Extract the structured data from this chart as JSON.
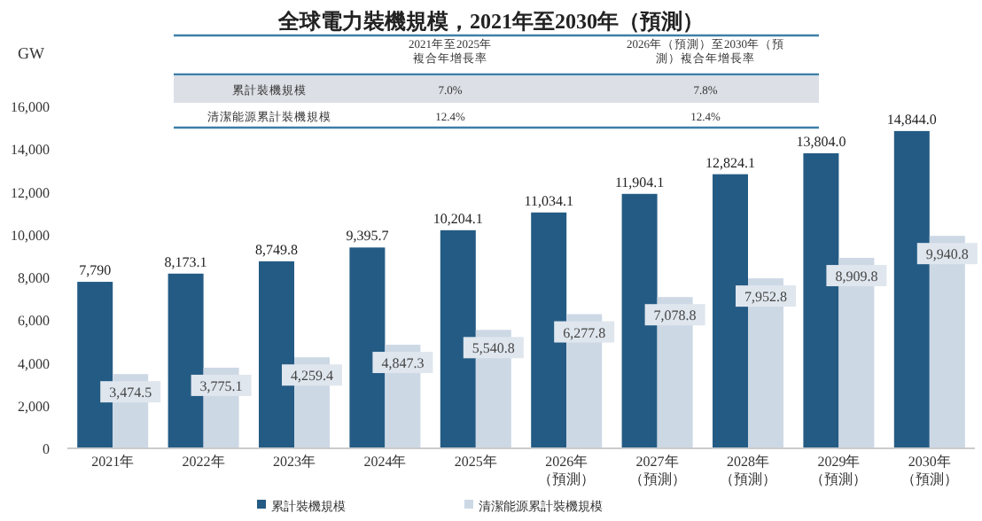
{
  "chart_data": {
    "type": "bar",
    "title": "全球電力裝機規模，2021年至2030年（預測）",
    "ylabel": "GW",
    "categories": [
      "2021年",
      "2022年",
      "2023年",
      "2024年",
      "2025年",
      "2026年（預測）",
      "2027年（預測）",
      "2028年（預測）",
      "2029年（預測）",
      "2030年（預測）"
    ],
    "series": [
      {
        "name": "累計裝機規模",
        "color": "#245b84",
        "values": [
          7790,
          8173.1,
          8749.8,
          9395.7,
          10204.1,
          11034.1,
          11904.1,
          12824.1,
          13804.0,
          14844.0
        ],
        "value_labels": [
          "7,790",
          "8,173.1",
          "8,749.8",
          "9,395.7",
          "10,204.1",
          "11,034.1",
          "11,904.1",
          "12,824.1",
          "13,804.0",
          "14,844.0"
        ]
      },
      {
        "name": "清潔能源累計裝機規模",
        "color": "#cdd8e5",
        "values": [
          3474.5,
          3775.1,
          4259.4,
          4847.3,
          5540.8,
          6277.8,
          7078.8,
          7952.8,
          8909.8,
          9940.8
        ],
        "value_labels": [
          "3,474.5",
          "3,775.1",
          "4,259.4",
          "4,847.3",
          "5,540.8",
          "6,277.8",
          "7,078.8",
          "7,952.8",
          "8,909.8",
          "9,940.8"
        ]
      }
    ],
    "ylim": [
      0,
      16000
    ],
    "yticks": [
      {
        "value": 0,
        "label": "0"
      },
      {
        "value": 2000,
        "label": "2,000"
      },
      {
        "value": 4000,
        "label": "4,000"
      },
      {
        "value": 6000,
        "label": "6,000"
      },
      {
        "value": 8000,
        "label": "8,000"
      },
      {
        "value": 10000,
        "label": "10,000"
      },
      {
        "value": 12000,
        "label": "12,000"
      },
      {
        "value": 14000,
        "label": "14,000"
      },
      {
        "value": 16000,
        "label": "16,000"
      }
    ],
    "grid": false,
    "legend": "bottom",
    "annotations": [
      "2021年至2025年複合年增長率",
      "2026年（預測）至2030年（預測）複合年增長率",
      "累計裝機規模",
      "7.0%",
      "7.8%",
      "清潔能源累計裝機規模",
      "12.4%",
      "12.4%"
    ]
  }
}
